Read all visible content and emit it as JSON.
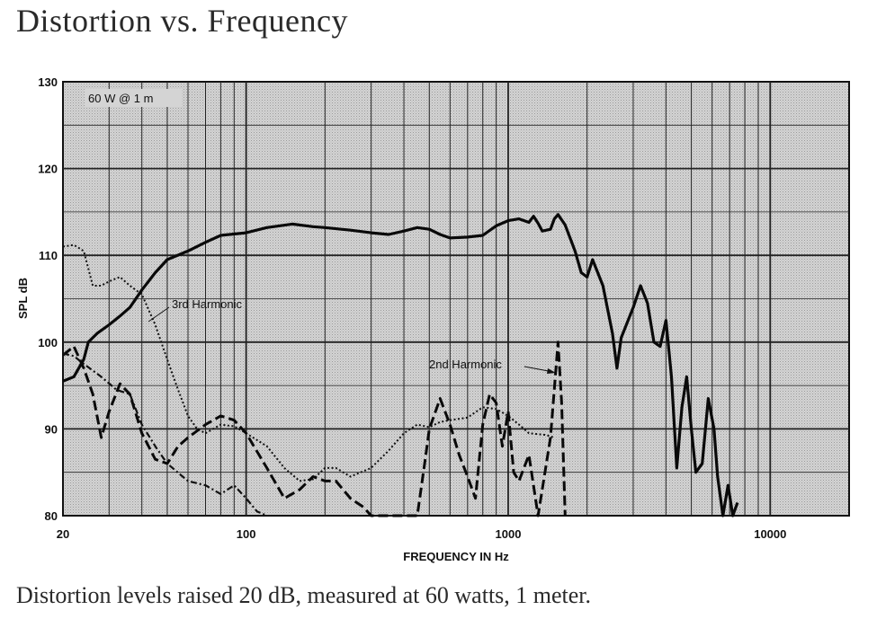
{
  "title": "Distortion vs. Frequency",
  "caption": "Distortion levels raised 20 dB, measured at 60 watts, 1 meter.",
  "chart_data": {
    "type": "line",
    "condition_label": "60 W @ 1 m",
    "xlabel": "FREQUENCY IN Hz",
    "ylabel": "SPL dB",
    "x_scale": "log",
    "xlim": [
      20,
      20000
    ],
    "ylim": [
      80,
      130
    ],
    "x_ticks": [
      20,
      100,
      1000,
      10000
    ],
    "x_tick_labels": [
      "20",
      "100",
      "1000",
      "10000"
    ],
    "y_ticks": [
      80,
      90,
      100,
      110,
      120,
      130
    ],
    "y_tick_labels": [
      "80",
      "90",
      "100",
      "110",
      "120",
      "130"
    ],
    "grid": true,
    "annotations": [
      {
        "text": "3rd Harmonic",
        "series": "3rd Harmonic",
        "at": [
          46,
          106.5
        ]
      },
      {
        "text": "2nd Harmonic",
        "series": "2nd Harmonic",
        "at": [
          1550,
          97.5
        ]
      }
    ],
    "series": [
      {
        "name": "",
        "style": "solid-thick",
        "points": [
          [
            20,
            95.5
          ],
          [
            22,
            96
          ],
          [
            24,
            98
          ],
          [
            25,
            100
          ],
          [
            27,
            101
          ],
          [
            30,
            102
          ],
          [
            33,
            103
          ],
          [
            36,
            104
          ],
          [
            40,
            106
          ],
          [
            45,
            108
          ],
          [
            50,
            109.5
          ],
          [
            60,
            110.5
          ],
          [
            70,
            111.5
          ],
          [
            80,
            112.3
          ],
          [
            100,
            112.6
          ],
          [
            120,
            113.2
          ],
          [
            150,
            113.6
          ],
          [
            180,
            113.3
          ],
          [
            200,
            113.2
          ],
          [
            250,
            112.9
          ],
          [
            300,
            112.6
          ],
          [
            350,
            112.4
          ],
          [
            400,
            112.8
          ],
          [
            450,
            113.2
          ],
          [
            500,
            113.0
          ],
          [
            550,
            112.4
          ],
          [
            600,
            112.0
          ],
          [
            700,
            112.1
          ],
          [
            800,
            112.3
          ],
          [
            900,
            113.4
          ],
          [
            1000,
            114.0
          ],
          [
            1100,
            114.2
          ],
          [
            1200,
            113.8
          ],
          [
            1250,
            114.5
          ],
          [
            1300,
            113.7
          ],
          [
            1350,
            112.8
          ],
          [
            1450,
            113.0
          ],
          [
            1500,
            114.2
          ],
          [
            1550,
            114.7
          ],
          [
            1650,
            113.5
          ],
          [
            1800,
            110.5
          ],
          [
            1900,
            108.0
          ],
          [
            2000,
            107.5
          ],
          [
            2100,
            109.5
          ],
          [
            2300,
            106.5
          ],
          [
            2500,
            101.0
          ],
          [
            2600,
            97.0
          ],
          [
            2700,
            100.5
          ],
          [
            3000,
            104.0
          ],
          [
            3200,
            106.5
          ],
          [
            3400,
            104.5
          ],
          [
            3600,
            100.0
          ],
          [
            3800,
            99.5
          ],
          [
            4000,
            102.5
          ],
          [
            4200,
            96.0
          ],
          [
            4400,
            85.5
          ],
          [
            4600,
            92.5
          ],
          [
            4800,
            96.0
          ],
          [
            5000,
            90.0
          ],
          [
            5200,
            85.0
          ],
          [
            5500,
            86.0
          ],
          [
            5800,
            93.5
          ],
          [
            6100,
            90.0
          ],
          [
            6300,
            84.5
          ],
          [
            6600,
            80.0
          ],
          [
            6900,
            83.5
          ],
          [
            7200,
            80.0
          ],
          [
            7500,
            81.5
          ]
        ]
      },
      {
        "name": "3rd Harmonic",
        "style": "dotted",
        "points": [
          [
            20,
            111
          ],
          [
            22,
            111.2
          ],
          [
            24,
            110.5
          ],
          [
            26,
            106.5
          ],
          [
            28,
            106.5
          ],
          [
            30,
            107
          ],
          [
            33,
            107.5
          ],
          [
            36,
            106.5
          ],
          [
            40,
            105.5
          ],
          [
            45,
            102
          ],
          [
            50,
            98
          ],
          [
            55,
            94.5
          ],
          [
            60,
            91.5
          ],
          [
            65,
            90
          ],
          [
            70,
            89.5
          ],
          [
            80,
            90.5
          ],
          [
            90,
            90.3
          ],
          [
            100,
            89.5
          ],
          [
            120,
            88
          ],
          [
            140,
            85.5
          ],
          [
            160,
            84
          ],
          [
            180,
            84.2
          ],
          [
            200,
            85.5
          ],
          [
            220,
            85.5
          ],
          [
            250,
            84.5
          ],
          [
            300,
            85.5
          ],
          [
            350,
            87.5
          ],
          [
            400,
            89.5
          ],
          [
            450,
            90.5
          ],
          [
            500,
            90.2
          ],
          [
            550,
            90.8
          ],
          [
            600,
            91.0
          ],
          [
            700,
            91.3
          ],
          [
            800,
            92.5
          ],
          [
            900,
            92.3
          ],
          [
            1000,
            91.5
          ],
          [
            1100,
            90.5
          ],
          [
            1200,
            89.5
          ],
          [
            1400,
            89.3
          ],
          [
            1500,
            89.0
          ]
        ]
      },
      {
        "name": "2nd Harmonic",
        "style": "dashed",
        "points": [
          [
            20,
            98.5
          ],
          [
            22,
            99.5
          ],
          [
            24,
            97
          ],
          [
            26,
            94
          ],
          [
            28,
            89
          ],
          [
            30,
            92
          ],
          [
            33,
            95.2
          ],
          [
            36,
            94
          ],
          [
            40,
            89.5
          ],
          [
            45,
            86.5
          ],
          [
            50,
            86
          ],
          [
            55,
            88
          ],
          [
            60,
            89
          ],
          [
            70,
            90.5
          ],
          [
            80,
            91.5
          ],
          [
            90,
            91
          ],
          [
            100,
            89.5
          ],
          [
            120,
            85.5
          ],
          [
            140,
            82
          ],
          [
            160,
            83
          ],
          [
            180,
            84.5
          ],
          [
            200,
            84
          ],
          [
            220,
            84
          ],
          [
            250,
            82
          ],
          [
            280,
            81
          ],
          [
            300,
            80
          ],
          [
            450,
            80
          ],
          [
            480,
            86
          ],
          [
            500,
            90
          ],
          [
            550,
            93.5
          ],
          [
            600,
            90.5
          ],
          [
            650,
            87
          ],
          [
            700,
            84.5
          ],
          [
            750,
            82
          ],
          [
            800,
            90.5
          ],
          [
            850,
            94
          ],
          [
            900,
            93
          ],
          [
            950,
            88
          ],
          [
            1000,
            92
          ],
          [
            1050,
            85
          ],
          [
            1100,
            84
          ],
          [
            1200,
            87
          ],
          [
            1300,
            80
          ],
          [
            1450,
            89
          ],
          [
            1550,
            100
          ],
          [
            1600,
            93
          ],
          [
            1650,
            80
          ]
        ]
      },
      {
        "name": "",
        "style": "dash-dot",
        "points": [
          [
            20,
            98.7
          ],
          [
            22,
            98.4
          ],
          [
            24,
            97.5
          ],
          [
            28,
            96
          ],
          [
            32,
            94.5
          ],
          [
            36,
            94
          ],
          [
            40,
            90.5
          ],
          [
            45,
            88
          ],
          [
            50,
            86
          ],
          [
            60,
            84
          ],
          [
            70,
            83.5
          ],
          [
            80,
            82.5
          ],
          [
            90,
            83.5
          ],
          [
            100,
            82
          ],
          [
            110,
            80.5
          ],
          [
            120,
            80
          ]
        ]
      }
    ]
  }
}
